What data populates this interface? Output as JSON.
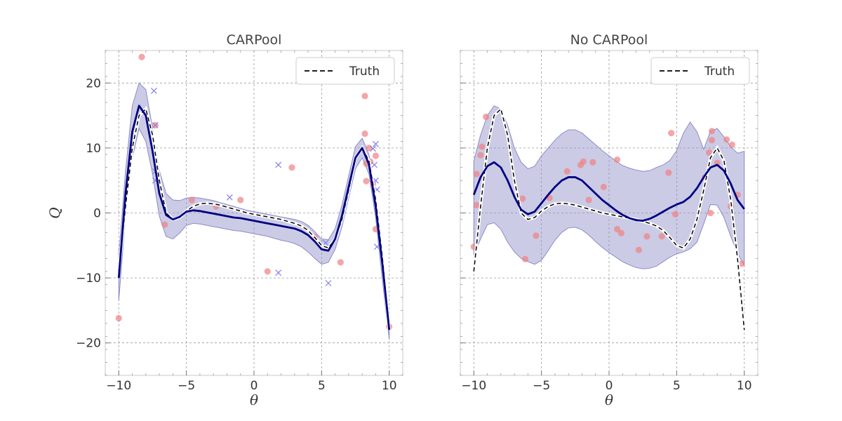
{
  "chart_data": [
    {
      "type": "line",
      "title": "CARPool",
      "xlabel": "θ",
      "ylabel": "Q",
      "xlim": [
        -11,
        11
      ],
      "ylim": [
        -25,
        25
      ],
      "xticks": [
        -10,
        -5,
        0,
        5,
        10
      ],
      "xtick_labels": [
        "−10",
        "−5",
        "0",
        "5",
        "10"
      ],
      "yticks": [
        -20,
        -10,
        0,
        10,
        20
      ],
      "ytick_labels": [
        "−20",
        "−10",
        "0",
        "10",
        "20"
      ],
      "grid": true,
      "legend": {
        "entries": [
          "Truth"
        ],
        "position": "top-right"
      },
      "truth": {
        "name": "Truth",
        "color": "#000000",
        "x": [
          -10,
          -9.5,
          -9,
          -8.5,
          -8,
          -7.5,
          -7,
          -6.5,
          -6,
          -5.5,
          -5,
          -4.5,
          -4,
          -3.5,
          -3,
          -2.5,
          -2,
          -1.5,
          -1,
          -0.5,
          0,
          0.5,
          1,
          1.5,
          2,
          2.5,
          3,
          3.5,
          4,
          4.5,
          5,
          5.5,
          6,
          6.5,
          7,
          7.5,
          8,
          8.5,
          9,
          9.5,
          10
        ],
        "y": [
          -9,
          1,
          10,
          15,
          16,
          12,
          5,
          0,
          -1,
          -0.7,
          0.3,
          1,
          1.4,
          1.5,
          1.4,
          1.2,
          0.9,
          0.6,
          0.3,
          0,
          -0.2,
          -0.4,
          -0.6,
          -0.8,
          -1,
          -1.3,
          -1.6,
          -2,
          -2.7,
          -3.8,
          -5,
          -5.4,
          -4,
          -1,
          3.5,
          8.5,
          10,
          8,
          2,
          -7,
          -18
        ]
      },
      "fit": {
        "color": "#000080",
        "x": [
          -10,
          -9.5,
          -9,
          -8.5,
          -8,
          -7.5,
          -7,
          -6.5,
          -6,
          -5.5,
          -5,
          -4.5,
          -4,
          -3.5,
          -3,
          -2.5,
          -2,
          -1.5,
          -1,
          -0.5,
          0,
          0.5,
          1,
          1.5,
          2,
          2.5,
          3,
          3.5,
          4,
          4.5,
          5,
          5.5,
          6,
          6.5,
          7,
          7.5,
          8,
          8.5,
          9,
          9.5,
          10
        ],
        "y": [
          -10,
          3,
          12.5,
          16.5,
          15,
          9.5,
          3,
          -0.3,
          -1,
          -0.6,
          0.2,
          0.4,
          0.3,
          0.1,
          -0.1,
          -0.3,
          -0.5,
          -0.7,
          -0.8,
          -1,
          -1.2,
          -1.4,
          -1.6,
          -1.8,
          -2,
          -2.2,
          -2.4,
          -2.8,
          -3.4,
          -4.4,
          -5.6,
          -5.8,
          -4,
          -0.5,
          4,
          8.5,
          10,
          7.5,
          1,
          -8,
          -18
        ]
      },
      "band": {
        "color": "#8c8cc8",
        "upper": [
          -6.5,
          6.5,
          16.5,
          20,
          19,
          13,
          6.5,
          3,
          2,
          1.9,
          2.3,
          2.4,
          2.3,
          2.1,
          1.9,
          1.6,
          1.3,
          1,
          0.7,
          0.4,
          0.2,
          0,
          -0.2,
          -0.4,
          -0.6,
          -0.8,
          -1,
          -1.3,
          -1.9,
          -2.9,
          -4,
          -4.1,
          -2.4,
          1.2,
          5.7,
          10.2,
          11.5,
          9,
          2.8,
          -5.5,
          -16.5
        ],
        "lower": [
          -13.5,
          -0.5,
          8.5,
          13,
          11,
          6,
          -0.5,
          -3.6,
          -4,
          -3.1,
          -1.9,
          -1.6,
          -1.7,
          -1.9,
          -2.1,
          -2.3,
          -2.5,
          -2.7,
          -2.8,
          -3,
          -3.2,
          -3.4,
          -3.6,
          -3.9,
          -4.2,
          -4.4,
          -4.7,
          -5.2,
          -6,
          -7,
          -7.9,
          -7.6,
          -5.6,
          -2.2,
          2.3,
          6.8,
          8.5,
          6,
          -0.8,
          -10.5,
          -19.5
        ]
      },
      "points": {
        "color": "#f08080",
        "x": [
          -10,
          -8.3,
          -7.3,
          -6.6,
          -4.6,
          -2.8,
          -1,
          1,
          2.8,
          4.5,
          6.4,
          8.2,
          8.2,
          8.3,
          8.3,
          8.5,
          8.6,
          8.8,
          9,
          9,
          10
        ],
        "y": [
          -16.2,
          24,
          13.5,
          -1.8,
          2,
          1,
          2,
          -9,
          7,
          -3.7,
          -7.6,
          18,
          12.2,
          7.6,
          4.9,
          10,
          7.9,
          4.5,
          8.8,
          -2.5,
          -17.5
        ]
      },
      "crosses": {
        "color": "#8080f0",
        "x": [
          -7.4,
          -7.3,
          -7.3,
          -7.3,
          -1.8,
          1.8,
          1.8,
          5.3,
          5.5,
          8.8,
          8.9,
          9,
          9,
          9.1,
          9.1
        ],
        "y": [
          18.8,
          6.4,
          5,
          13.5,
          2.4,
          7.4,
          -9.2,
          -4.6,
          -10.8,
          9.9,
          7.4,
          10.6,
          5,
          3.6,
          -5.2
        ]
      }
    },
    {
      "type": "line",
      "title": "No CARPool",
      "xlabel": "θ",
      "ylabel": "",
      "xlim": [
        -11,
        11
      ],
      "ylim": [
        -25,
        25
      ],
      "xticks": [
        -10,
        -5,
        0,
        5,
        10
      ],
      "xtick_labels": [
        "−10",
        "−5",
        "0",
        "5",
        "10"
      ],
      "yticks": [
        -20,
        -10,
        0,
        10,
        20
      ],
      "ytick_labels": [
        "",
        "",
        "",
        "",
        ""
      ],
      "grid": true,
      "legend": {
        "entries": [
          "Truth"
        ],
        "position": "top-right"
      },
      "truth": {
        "name": "Truth",
        "color": "#000000",
        "x": [
          -10,
          -9.5,
          -9,
          -8.5,
          -8,
          -7.5,
          -7,
          -6.5,
          -6,
          -5.5,
          -5,
          -4.5,
          -4,
          -3.5,
          -3,
          -2.5,
          -2,
          -1.5,
          -1,
          -0.5,
          0,
          0.5,
          1,
          1.5,
          2,
          2.5,
          3,
          3.5,
          4,
          4.5,
          5,
          5.5,
          6,
          6.5,
          7,
          7.5,
          8,
          8.5,
          9,
          9.5,
          10
        ],
        "y": [
          -9,
          1,
          10,
          15,
          16,
          12,
          5,
          0,
          -1,
          -0.7,
          0.3,
          1,
          1.4,
          1.5,
          1.4,
          1.2,
          0.9,
          0.6,
          0.3,
          0,
          -0.2,
          -0.4,
          -0.6,
          -0.8,
          -1,
          -1.3,
          -1.6,
          -2,
          -2.7,
          -3.8,
          -5,
          -5.4,
          -4,
          -1,
          3.5,
          8.5,
          10,
          8,
          2,
          -7,
          -18
        ]
      },
      "fit": {
        "color": "#000080",
        "x": [
          -10,
          -9.5,
          -9,
          -8.5,
          -8,
          -7.5,
          -7,
          -6.5,
          -6,
          -5.5,
          -5,
          -4.5,
          -4,
          -3.5,
          -3,
          -2.5,
          -2,
          -1.5,
          -1,
          -0.5,
          0,
          0.5,
          1,
          1.5,
          2,
          2.5,
          3,
          3.5,
          4,
          4.5,
          5,
          5.5,
          6,
          6.5,
          7,
          7.5,
          8,
          8.5,
          9,
          9.5,
          10
        ],
        "y": [
          2.8,
          5.5,
          7.2,
          7.8,
          7,
          5,
          2.5,
          0.5,
          -0.2,
          0.2,
          1.5,
          2.8,
          4,
          5,
          5.5,
          5.5,
          5,
          4,
          3,
          2,
          1.2,
          0.4,
          -0.3,
          -0.8,
          -1.1,
          -1.2,
          -0.9,
          -0.4,
          0.2,
          0.8,
          1.3,
          1.7,
          2.5,
          3.8,
          5.5,
          7,
          7.4,
          6.5,
          4.5,
          2,
          0.6
        ]
      },
      "band": {
        "color": "#8c8cc8",
        "upper": [
          8,
          12,
          15,
          16.5,
          16,
          13.5,
          10,
          7.8,
          6.8,
          7.2,
          8.8,
          10,
          11.2,
          12.2,
          12.8,
          12.8,
          12.3,
          11.4,
          10.5,
          9.6,
          8.8,
          8,
          7.3,
          6.9,
          6.6,
          6.4,
          6.5,
          7,
          7.4,
          8.1,
          9.6,
          12.3,
          14,
          12.5,
          9.8,
          12.6,
          13,
          11.7,
          10.2,
          9.2,
          9.5
        ],
        "lower": [
          -6.5,
          -4,
          -1.8,
          -1.5,
          -2.5,
          -4.5,
          -6,
          -7,
          -7.5,
          -7.9,
          -7.3,
          -5.8,
          -4.2,
          -3,
          -2.3,
          -2.2,
          -2.6,
          -3.4,
          -4.4,
          -5.3,
          -6.1,
          -6.8,
          -7.5,
          -8,
          -8.4,
          -8.6,
          -8.5,
          -8.2,
          -7.5,
          -6.8,
          -6.3,
          -6,
          -5.5,
          -4.5,
          -1.7,
          1.3,
          1.2,
          -0.7,
          -3.6,
          -6.2,
          -8.1
        ]
      },
      "points": {
        "color": "#f08080",
        "x": [
          -10,
          -9.8,
          -9.8,
          -9.5,
          -9.4,
          -9.1,
          -6.4,
          -6.2,
          -5.4,
          -4.4,
          -3.1,
          -2.1,
          -1.9,
          -1.5,
          -1.2,
          -0.4,
          0.6,
          0.6,
          0.9,
          2.2,
          2.8,
          3.9,
          4.4,
          4.6,
          4.9,
          7.1,
          7.4,
          7.5,
          7.6,
          7.6,
          8,
          8.7,
          9,
          9.1,
          9.5,
          9.8
        ],
        "y": [
          -5.2,
          1.2,
          6,
          8.9,
          10.2,
          14.8,
          2.2,
          -7.1,
          -3.5,
          2.3,
          6.4,
          7.4,
          7.9,
          2,
          7.8,
          4,
          -2.5,
          8.2,
          -3.1,
          -5.7,
          -3.6,
          -3.6,
          6.2,
          12.3,
          -0.2,
          5.5,
          9.3,
          0,
          12.6,
          11.2,
          7.7,
          11.3,
          1,
          10.5,
          2.8,
          -7.8
        ]
      },
      "crosses": {
        "color": "#8080f0",
        "x": [],
        "y": []
      }
    }
  ]
}
